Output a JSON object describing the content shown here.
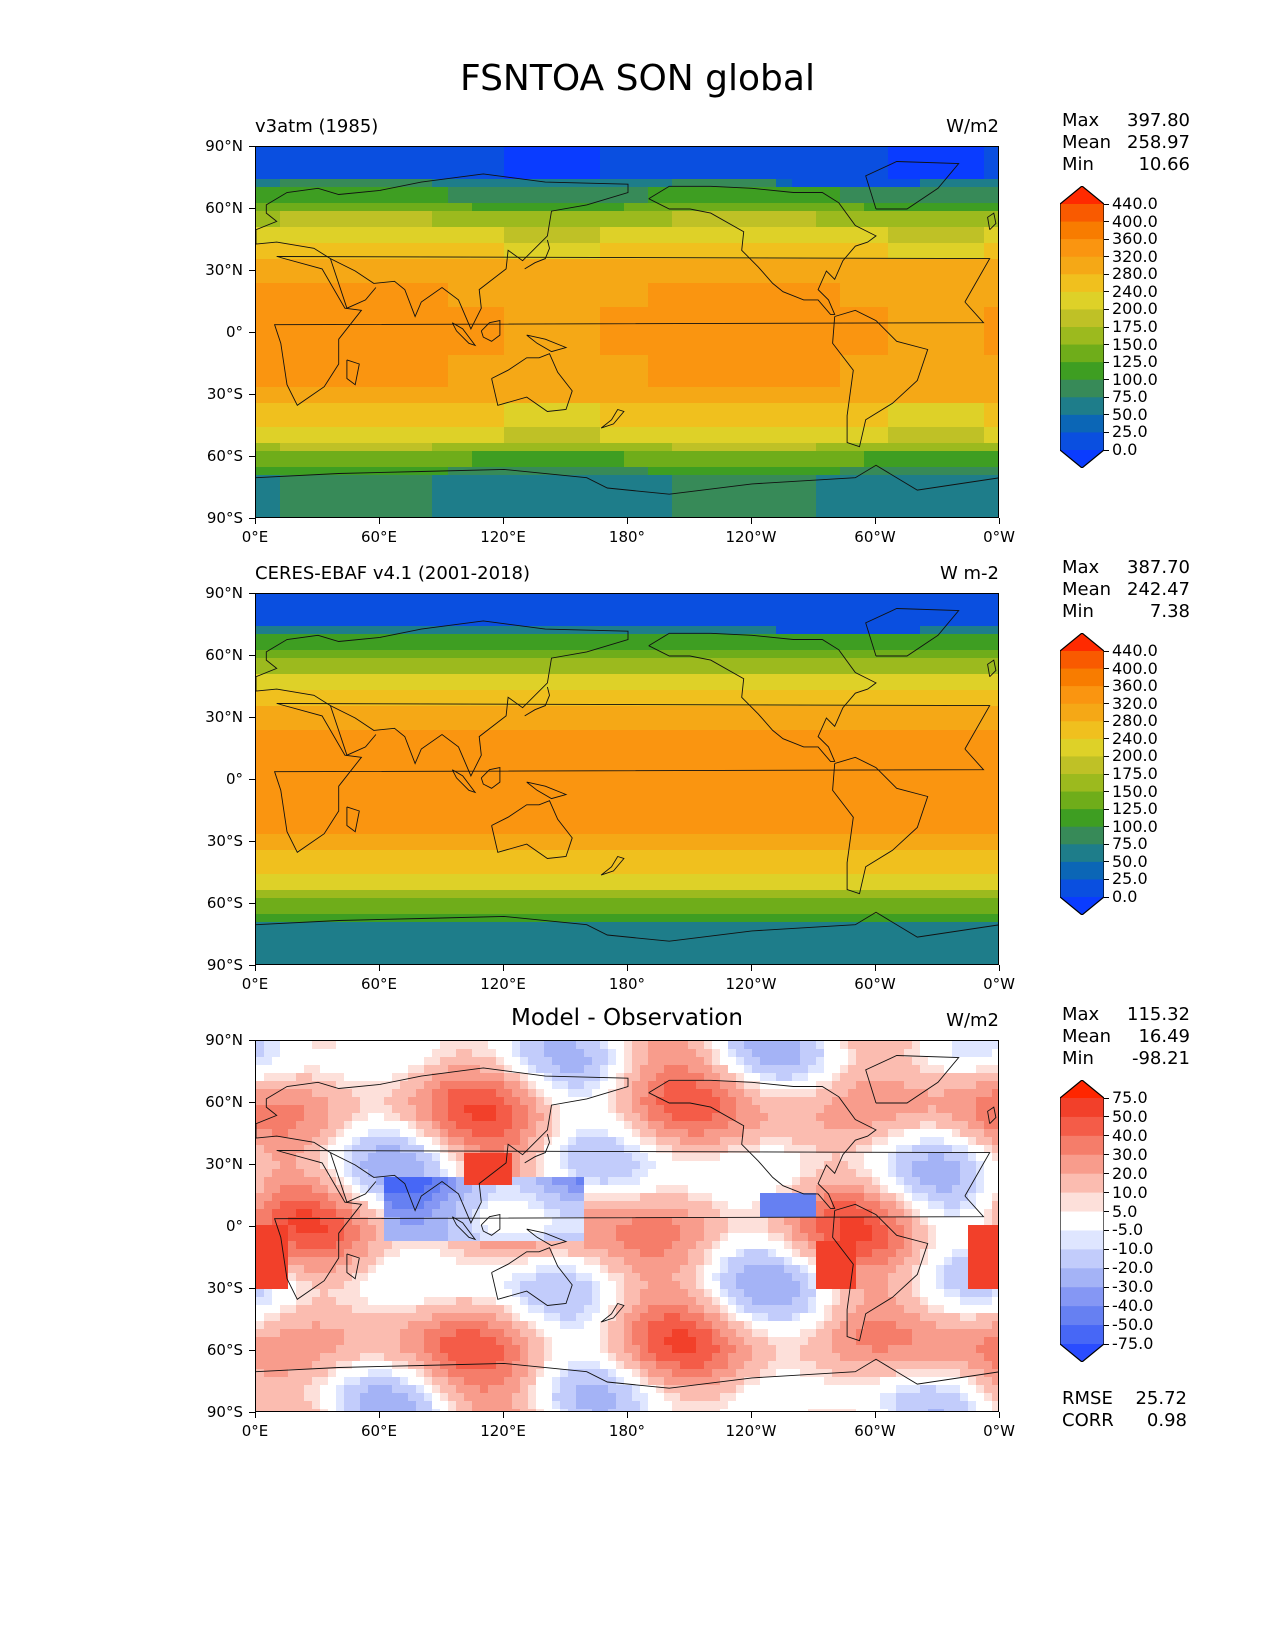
{
  "figure": {
    "title": "FSNTOA SON global"
  },
  "axes": {
    "y_ticks": [
      "90°N",
      "60°N",
      "30°N",
      "0°",
      "30°S",
      "60°S",
      "90°S"
    ],
    "x_ticks": [
      "0°E",
      "60°E",
      "120°E",
      "180°",
      "120°W",
      "60°W",
      "0°W"
    ]
  },
  "panels": [
    {
      "id": "model",
      "left_label": "v3atm (1985)",
      "center_title": "",
      "units": "W/m2",
      "stats": {
        "max_label": "Max",
        "max": "397.80",
        "mean_label": "Mean",
        "mean": "258.97",
        "min_label": "Min",
        "min": "10.66"
      },
      "colorbar_labels": [
        "440.0",
        "400.0",
        "360.0",
        "320.0",
        "280.0",
        "240.0",
        "200.0",
        "175.0",
        "150.0",
        "125.0",
        "100.0",
        "75.0",
        "50.0",
        "25.0",
        "0.0"
      ],
      "colorbar_colors": [
        "#ff2a00",
        "#f95a00",
        "#f87c00",
        "#fa9510",
        "#f5a816",
        "#f0c01e",
        "#ded128",
        "#bfc126",
        "#9cba1e",
        "#6fad1a",
        "#3e9e22",
        "#378a58",
        "#1e7d8a",
        "#0b66b6",
        "#0a4fe0",
        "#0a3cff"
      ],
      "kind": "absolute"
    },
    {
      "id": "obs",
      "left_label": "CERES-EBAF v4.1 (2001-2018)",
      "center_title": "",
      "units": "W m-2",
      "stats": {
        "max_label": "Max",
        "max": "387.70",
        "mean_label": "Mean",
        "mean": "242.47",
        "min_label": "Min",
        "min": "7.38"
      },
      "colorbar_labels": [
        "440.0",
        "400.0",
        "360.0",
        "320.0",
        "280.0",
        "240.0",
        "200.0",
        "175.0",
        "150.0",
        "125.0",
        "100.0",
        "75.0",
        "50.0",
        "25.0",
        "0.0"
      ],
      "colorbar_colors": [
        "#ff2a00",
        "#f95a00",
        "#f87c00",
        "#fa9510",
        "#f5a816",
        "#f0c01e",
        "#ded128",
        "#bfc126",
        "#9cba1e",
        "#6fad1a",
        "#3e9e22",
        "#378a58",
        "#1e7d8a",
        "#0b66b6",
        "#0a4fe0",
        "#0a3cff"
      ],
      "kind": "absolute"
    },
    {
      "id": "diff",
      "left_label": "",
      "center_title": "Model - Observation",
      "units": "W/m2",
      "stats": {
        "max_label": "Max",
        "max": "115.32",
        "mean_label": "Mean",
        "mean": "16.49",
        "min_label": "Min",
        "min": "-98.21"
      },
      "colorbar_labels": [
        "75.0",
        "50.0",
        "40.0",
        "30.0",
        "20.0",
        "10.0",
        "5.0",
        "-5.0",
        "-10.0",
        "-20.0",
        "-30.0",
        "-40.0",
        "-50.0",
        "-75.0"
      ],
      "colorbar_colors": [
        "#ff2600",
        "#f2402a",
        "#f45c48",
        "#f57d6a",
        "#f89c8c",
        "#fbbcb0",
        "#fde0da",
        "#ffffff",
        "#dfe6ff",
        "#c2ccfb",
        "#a4b3f6",
        "#8597f4",
        "#6680f2",
        "#4767f6",
        "#2a4cff"
      ],
      "kind": "difference",
      "rmse_label": "RMSE",
      "rmse": "25.72",
      "corr_label": "CORR",
      "corr": "0.98"
    }
  ]
}
